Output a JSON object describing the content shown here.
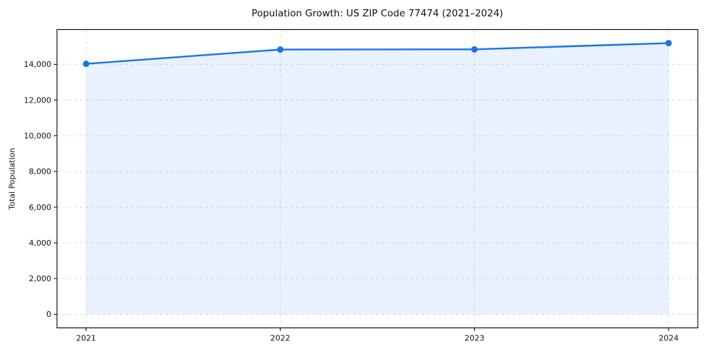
{
  "figure": {
    "background": "#ffffff"
  },
  "chart_data": {
    "type": "area",
    "title": "Population Growth: US ZIP Code 77474 (2021–2024)",
    "xlabel": "",
    "ylabel": "Total Population",
    "x": [
      2021,
      2022,
      2023,
      2024
    ],
    "x_tick_labels": [
      "2021",
      "2022",
      "2023",
      "2024"
    ],
    "series": [
      {
        "name": "Total Population",
        "values": [
          14030,
          14830,
          14840,
          15190
        ]
      }
    ],
    "y_ticks": [
      0,
      2000,
      4000,
      6000,
      8000,
      10000,
      12000,
      14000
    ],
    "y_tick_labels": [
      "0",
      "2,000",
      "4,000",
      "6,000",
      "8,000",
      "10,000",
      "12,000",
      "14,000"
    ],
    "xlim": [
      2020.85,
      2024.15
    ],
    "ylim": [
      -760,
      15950
    ],
    "baseline": 0,
    "grid": true,
    "grid_style": "dashed",
    "legend": "none",
    "line_color": "#1a73e8",
    "marker_color": "#1a73e8",
    "fill_color": "rgba(26, 115, 232, 0.10)",
    "grid_color": "#dcdcdc",
    "frame_color": "#000000",
    "text_color": "#111111"
  }
}
